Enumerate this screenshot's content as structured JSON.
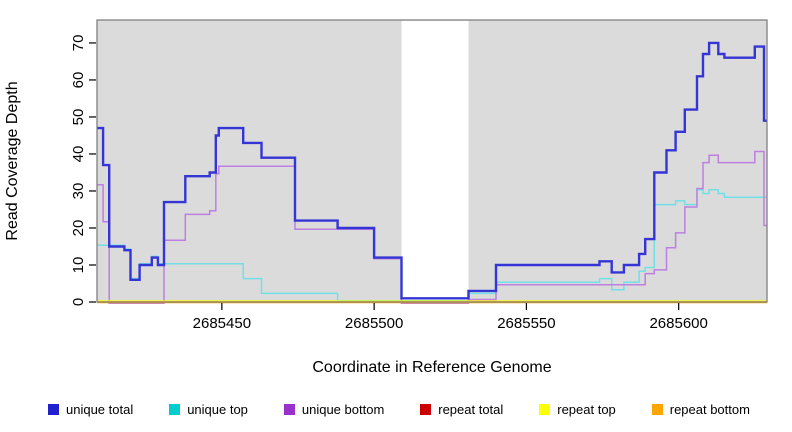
{
  "chart_data": {
    "type": "line",
    "subtype": "step",
    "title": "",
    "xlabel": "Coordinate in Reference Genome",
    "ylabel": "Read Coverage Depth",
    "xlim": [
      2685409,
      2685629
    ],
    "ylim": [
      0,
      76.2
    ],
    "x_ticks": [
      2685450,
      2685500,
      2685550,
      2685600
    ],
    "y_ticks": [
      0,
      10,
      20,
      30,
      40,
      50,
      60,
      70
    ],
    "grid": false,
    "plot_bg": "#DBDBDB",
    "frame_color": "#808080",
    "masked_region": {
      "from": 2685509,
      "to": 2685531,
      "color": "#FFFFFF"
    },
    "series": [
      {
        "name": "unique top",
        "color": "#72DFE7",
        "width": 1.5,
        "dy": -1.2,
        "points": [
          [
            2685409,
            15
          ],
          [
            2685418,
            14
          ],
          [
            2685420,
            6
          ],
          [
            2685423,
            10
          ],
          [
            2685427,
            12
          ],
          [
            2685429,
            10
          ],
          [
            2685457,
            6
          ],
          [
            2685463,
            2
          ],
          [
            2685488,
            0
          ],
          [
            2685509,
            0
          ],
          [
            2685531,
            2
          ],
          [
            2685540,
            5
          ],
          [
            2685574,
            6
          ],
          [
            2685578,
            3
          ],
          [
            2685582,
            5
          ],
          [
            2685587,
            8
          ],
          [
            2685589,
            9
          ],
          [
            2685592,
            26
          ],
          [
            2685599,
            27
          ],
          [
            2685602,
            26
          ],
          [
            2685606,
            30
          ],
          [
            2685608,
            29
          ],
          [
            2685610,
            30
          ],
          [
            2685613,
            29
          ],
          [
            2685615,
            28
          ]
        ]
      },
      {
        "name": "unique bottom",
        "color": "#BD7FE0",
        "width": 1.5,
        "dy": 1.2,
        "points": [
          [
            2685409,
            32
          ],
          [
            2685411,
            22
          ],
          [
            2685413,
            0
          ],
          [
            2685431,
            17
          ],
          [
            2685438,
            24
          ],
          [
            2685446,
            25
          ],
          [
            2685448,
            35
          ],
          [
            2685449,
            37
          ],
          [
            2685474,
            20
          ],
          [
            2685500,
            12
          ],
          [
            2685509,
            0
          ],
          [
            2685531,
            1
          ],
          [
            2685540,
            5
          ],
          [
            2685589,
            8
          ],
          [
            2685592,
            9
          ],
          [
            2685596,
            15
          ],
          [
            2685599,
            19
          ],
          [
            2685602,
            26
          ],
          [
            2685606,
            31
          ],
          [
            2685608,
            38
          ],
          [
            2685610,
            40
          ],
          [
            2685613,
            38
          ],
          [
            2685625,
            41
          ],
          [
            2685628,
            21
          ]
        ]
      },
      {
        "name": "unique total",
        "color": "#3535D6",
        "width": 2.4,
        "dy": 0,
        "points": [
          [
            2685409,
            47
          ],
          [
            2685411,
            37
          ],
          [
            2685413,
            15
          ],
          [
            2685418,
            14
          ],
          [
            2685420,
            6
          ],
          [
            2685423,
            10
          ],
          [
            2685427,
            12
          ],
          [
            2685429,
            10
          ],
          [
            2685431,
            27
          ],
          [
            2685438,
            34
          ],
          [
            2685446,
            35
          ],
          [
            2685448,
            45
          ],
          [
            2685449,
            47
          ],
          [
            2685457,
            43
          ],
          [
            2685463,
            39
          ],
          [
            2685474,
            22
          ],
          [
            2685488,
            20
          ],
          [
            2685500,
            12
          ],
          [
            2685509,
            1
          ],
          [
            2685531,
            3
          ],
          [
            2685540,
            10
          ],
          [
            2685574,
            11
          ],
          [
            2685578,
            8
          ],
          [
            2685582,
            10
          ],
          [
            2685587,
            13
          ],
          [
            2685589,
            17
          ],
          [
            2685592,
            35
          ],
          [
            2685596,
            41
          ],
          [
            2685599,
            46
          ],
          [
            2685602,
            52
          ],
          [
            2685606,
            61
          ],
          [
            2685608,
            67
          ],
          [
            2685610,
            70
          ],
          [
            2685613,
            67
          ],
          [
            2685615,
            66
          ],
          [
            2685625,
            69
          ],
          [
            2685628,
            49
          ]
        ]
      },
      {
        "name": "repeat total",
        "color": "#CC0000",
        "width": 1.4,
        "dy": 0,
        "points": [
          [
            2685409,
            0
          ]
        ]
      },
      {
        "name": "repeat top",
        "color": "#FFFF00",
        "width": 1.4,
        "dy": -0.9,
        "points": [
          [
            2685409,
            0
          ]
        ]
      },
      {
        "name": "repeat bottom",
        "color": "#FFA500",
        "width": 2.0,
        "dy": 0.2,
        "points": [
          [
            2685409,
            0
          ]
        ]
      }
    ],
    "legend": {
      "position": "bottom",
      "entries": [
        {
          "label": "unique total",
          "color": "#2020CC"
        },
        {
          "label": "unique top",
          "color": "#00CDCD"
        },
        {
          "label": "unique bottom",
          "color": "#9932CC"
        },
        {
          "label": "repeat total",
          "color": "#CC0000"
        },
        {
          "label": "repeat top",
          "color": "#FFFF00"
        },
        {
          "label": "repeat bottom",
          "color": "#FFA500"
        }
      ]
    }
  }
}
